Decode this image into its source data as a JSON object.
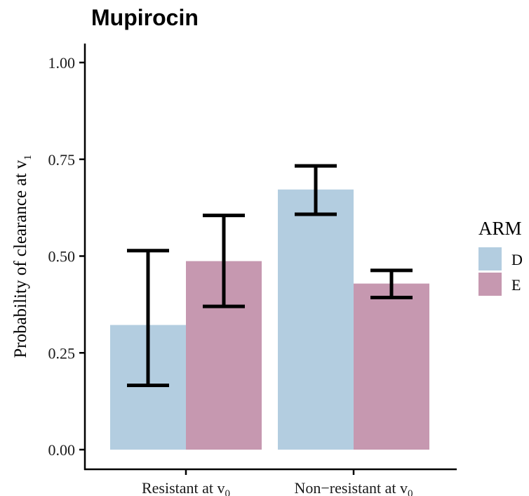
{
  "chart_data": {
    "type": "bar",
    "title": "Mupirocin",
    "ylabel": {
      "main": "Probability of clearance at v",
      "sub": "1"
    },
    "xlabel": "",
    "ylim": [
      0,
      1.05
    ],
    "yticks": [
      0,
      0.25,
      0.5,
      0.75,
      1.0
    ],
    "ytick_labels": [
      "0.00",
      "0.25",
      "0.50",
      "0.75",
      "1.00"
    ],
    "categories": [
      {
        "main": "Resistant at v",
        "sub": "0"
      },
      {
        "main": "Non−resistant at v",
        "sub": "0"
      }
    ],
    "legend": {
      "title": "ARM",
      "position": "right"
    },
    "series": [
      {
        "name": "D",
        "color": "#b3cde0",
        "values": [
          0.322,
          0.672
        ],
        "lower": [
          0.166,
          0.608
        ],
        "upper": [
          0.514,
          0.733
        ]
      },
      {
        "name": "E",
        "color": "#c698b0",
        "values": [
          0.487,
          0.429
        ],
        "lower": [
          0.37,
          0.393
        ],
        "upper": [
          0.605,
          0.463
        ]
      }
    ],
    "grid": false
  }
}
